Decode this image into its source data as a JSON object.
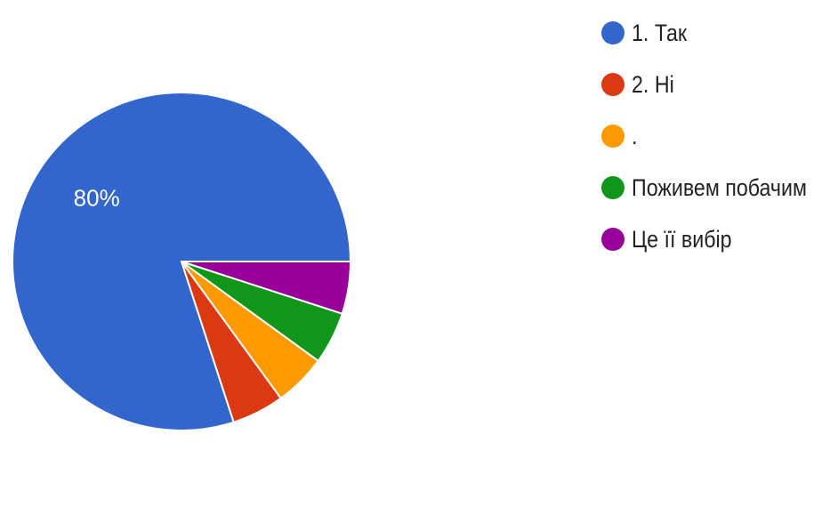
{
  "chart_data": {
    "type": "pie",
    "start_angle_deg": 0,
    "direction": "counterclockwise",
    "slices": [
      {
        "label": "1. Так",
        "value": 80,
        "color": "#3366cc",
        "data_label": "80%"
      },
      {
        "label": "2. Ні",
        "value": 5,
        "color": "#dc3912",
        "data_label": ""
      },
      {
        "label": ".",
        "value": 5,
        "color": "#ff9900",
        "data_label": ""
      },
      {
        "label": "Поживем побачим",
        "value": 5,
        "color": "#109618",
        "data_label": ""
      },
      {
        "label": "Це її вибір",
        "value": 5,
        "color": "#990099",
        "data_label": ""
      }
    ],
    "legend_position": "right"
  }
}
